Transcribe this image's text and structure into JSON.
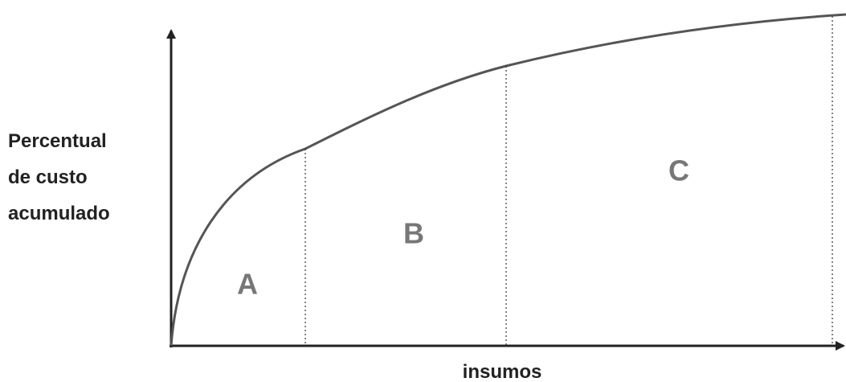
{
  "axes": {
    "y_label": [
      "Percentual",
      "de custo",
      "acumulado"
    ],
    "x_label": "insumos"
  },
  "regions": [
    {
      "label": "A"
    },
    {
      "label": "B"
    },
    {
      "label": "C"
    }
  ]
}
